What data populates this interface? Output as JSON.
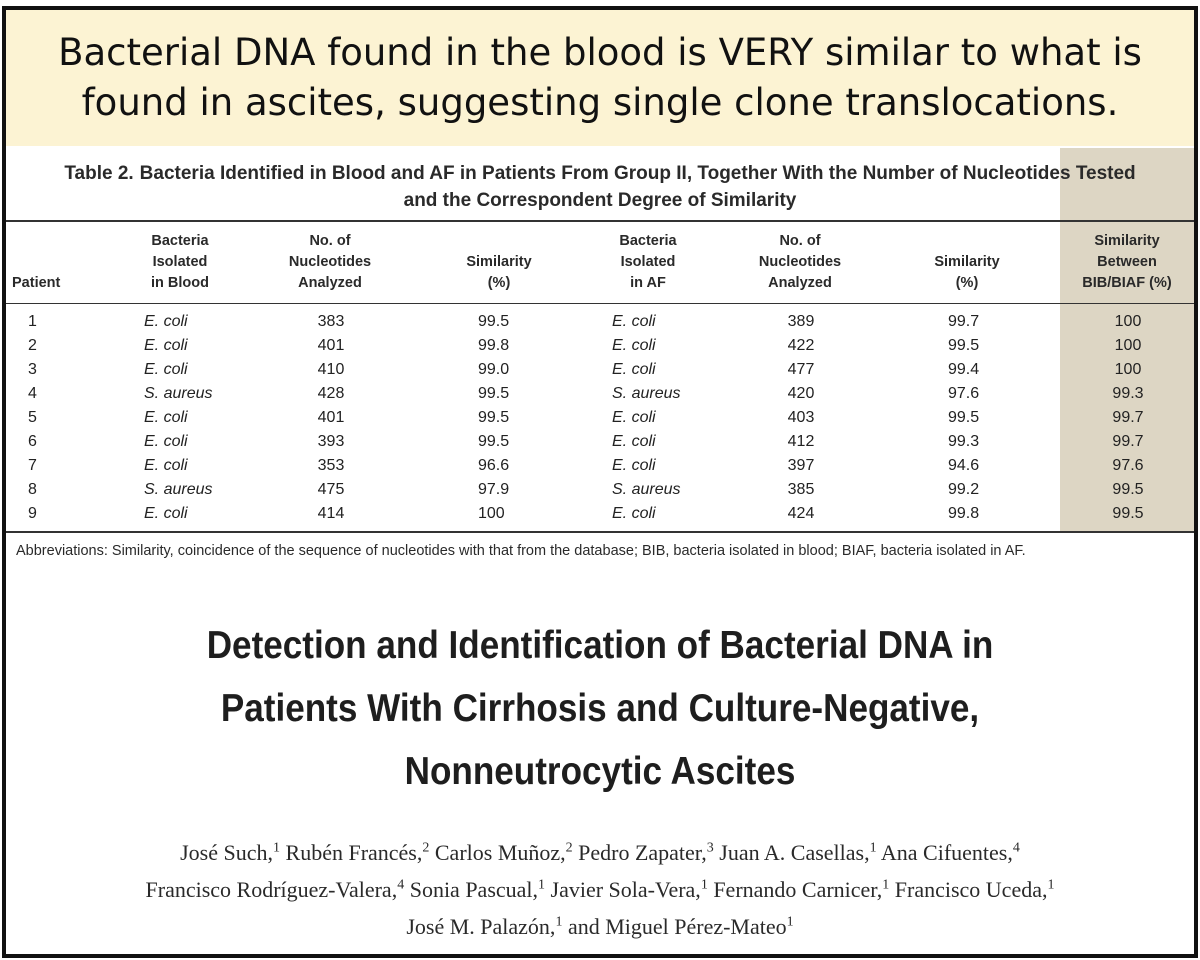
{
  "headline": "Bacterial DNA found in the blood is VERY similar to what is found in ascites, suggesting single clone translocations.",
  "table": {
    "label": "Table 2.",
    "caption_line1": "Bacteria Identified in Blood and AF in Patients From Group II, Together With the Number of Nucleotides Tested",
    "caption_line2": "and the Correspondent Degree of Similarity",
    "headers": {
      "patient": "Patient",
      "bacteria_blood": [
        "Bacteria",
        "Isolated",
        "in Blood"
      ],
      "nucleotides_blood": [
        "No. of",
        "Nucleotides",
        "Analyzed"
      ],
      "similarity_blood": [
        "Similarity",
        "(%)"
      ],
      "bacteria_af": [
        "Bacteria",
        "Isolated",
        "in AF"
      ],
      "nucleotides_af": [
        "No. of",
        "Nucleotides",
        "Analyzed"
      ],
      "similarity_af": [
        "Similarity",
        "(%)"
      ],
      "similarity_between": [
        "Similarity",
        "Between",
        "BIB/BIAF (%)"
      ]
    },
    "rows": [
      {
        "patient": "1",
        "blood": "E. coli",
        "n_blood": "383",
        "sim_blood": "99.5",
        "af": "E. coli",
        "n_af": "389",
        "sim_af": "99.7",
        "between": "100"
      },
      {
        "patient": "2",
        "blood": "E. coli",
        "n_blood": "401",
        "sim_blood": "99.8",
        "af": "E. coli",
        "n_af": "422",
        "sim_af": "99.5",
        "between": "100"
      },
      {
        "patient": "3",
        "blood": "E. coli",
        "n_blood": "410",
        "sim_blood": "99.0",
        "af": "E. coli",
        "n_af": "477",
        "sim_af": "99.4",
        "between": "100"
      },
      {
        "patient": "4",
        "blood": "S. aureus",
        "n_blood": "428",
        "sim_blood": "99.5",
        "af": "S. aureus",
        "n_af": "420",
        "sim_af": "97.6",
        "between": "99.3"
      },
      {
        "patient": "5",
        "blood": "E. coli",
        "n_blood": "401",
        "sim_blood": "99.5",
        "af": "E. coli",
        "n_af": "403",
        "sim_af": "99.5",
        "between": "99.7"
      },
      {
        "patient": "6",
        "blood": "E. coli",
        "n_blood": "393",
        "sim_blood": "99.5",
        "af": "E. coli",
        "n_af": "412",
        "sim_af": "99.3",
        "between": "99.7"
      },
      {
        "patient": "7",
        "blood": "E. coli",
        "n_blood": "353",
        "sim_blood": "96.6",
        "af": "E. coli",
        "n_af": "397",
        "sim_af": "94.6",
        "between": "97.6"
      },
      {
        "patient": "8",
        "blood": "S. aureus",
        "n_blood": "475",
        "sim_blood": "97.9",
        "af": "S. aureus",
        "n_af": "385",
        "sim_af": "99.2",
        "between": "99.5"
      },
      {
        "patient": "9",
        "blood": "E. coli",
        "n_blood": "414",
        "sim_blood": "100",
        "af": "E. coli",
        "n_af": "424",
        "sim_af": "99.8",
        "between": "99.5"
      }
    ],
    "footnote": "Abbreviations: Similarity, coincidence of the sequence of nucleotides with that from the database; BIB, bacteria isolated in blood; BIAF, bacteria isolated in AF.",
    "highlight_color": "#ddd6c4"
  },
  "paper": {
    "title_lines": [
      "Detection and Identification of Bacterial DNA in",
      "Patients With Cirrhosis and Culture-Negative,",
      "Nonneutrocytic Ascites"
    ],
    "authors": [
      {
        "name": "José Such,",
        "aff": "1"
      },
      {
        "name": "Rubén Francés,",
        "aff": "2"
      },
      {
        "name": "Carlos Muñoz,",
        "aff": "2"
      },
      {
        "name": "Pedro Zapater,",
        "aff": "3"
      },
      {
        "name": "Juan A. Casellas,",
        "aff": "1"
      },
      {
        "name": "Ana Cifuentes,",
        "aff": "4"
      },
      {
        "name": "Francisco Rodríguez-Valera,",
        "aff": "4"
      },
      {
        "name": "Sonia Pascual,",
        "aff": "1"
      },
      {
        "name": "Javier Sola-Vera,",
        "aff": "1"
      },
      {
        "name": "Fernando Carnicer,",
        "aff": "1"
      },
      {
        "name": "Francisco Uceda,",
        "aff": "1"
      },
      {
        "name": "José M. Palazón,",
        "aff": "1"
      },
      {
        "name": "and Miguel Pérez-Mateo",
        "aff": "1"
      }
    ]
  }
}
